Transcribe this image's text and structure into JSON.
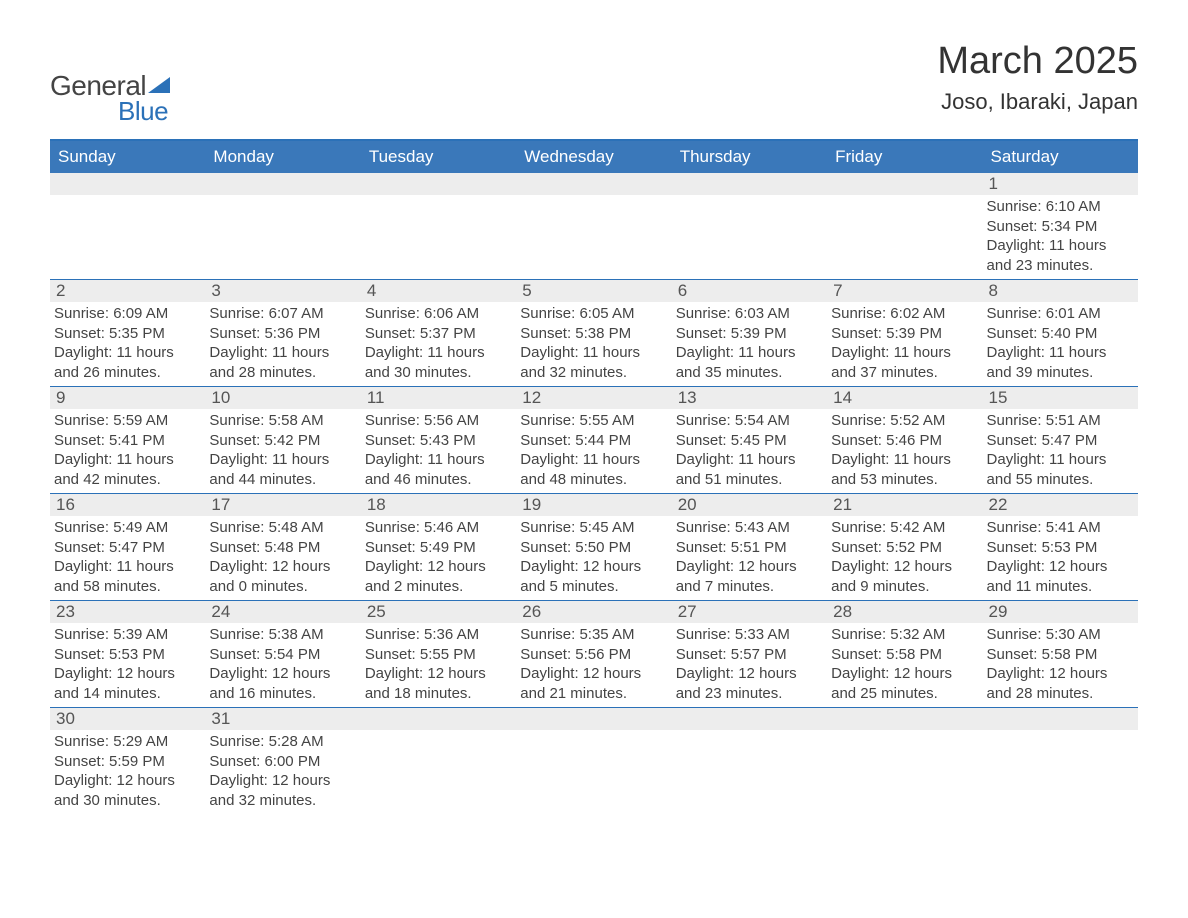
{
  "logo": {
    "text1": "General",
    "text2": "Blue"
  },
  "title": "March 2025",
  "location": "Joso, Ibaraki, Japan",
  "colors": {
    "header_bg": "#3a78ba",
    "header_text": "#ffffff",
    "row_divider": "#2b71b8",
    "daynum_bg": "#ededed",
    "text": "#444444",
    "background": "#ffffff"
  },
  "typography": {
    "title_fontsize_pt": 28,
    "location_fontsize_pt": 16,
    "weekday_fontsize_pt": 13,
    "daynum_fontsize_pt": 13,
    "body_fontsize_pt": 11
  },
  "layout": {
    "columns": 7,
    "rows": 6,
    "type": "calendar-grid"
  },
  "weekdays": [
    "Sunday",
    "Monday",
    "Tuesday",
    "Wednesday",
    "Thursday",
    "Friday",
    "Saturday"
  ],
  "weeks": [
    [
      null,
      null,
      null,
      null,
      null,
      null,
      {
        "n": "1",
        "sunrise": "Sunrise: 6:10 AM",
        "sunset": "Sunset: 5:34 PM",
        "daylight": "Daylight: 11 hours and 23 minutes."
      }
    ],
    [
      {
        "n": "2",
        "sunrise": "Sunrise: 6:09 AM",
        "sunset": "Sunset: 5:35 PM",
        "daylight": "Daylight: 11 hours and 26 minutes."
      },
      {
        "n": "3",
        "sunrise": "Sunrise: 6:07 AM",
        "sunset": "Sunset: 5:36 PM",
        "daylight": "Daylight: 11 hours and 28 minutes."
      },
      {
        "n": "4",
        "sunrise": "Sunrise: 6:06 AM",
        "sunset": "Sunset: 5:37 PM",
        "daylight": "Daylight: 11 hours and 30 minutes."
      },
      {
        "n": "5",
        "sunrise": "Sunrise: 6:05 AM",
        "sunset": "Sunset: 5:38 PM",
        "daylight": "Daylight: 11 hours and 32 minutes."
      },
      {
        "n": "6",
        "sunrise": "Sunrise: 6:03 AM",
        "sunset": "Sunset: 5:39 PM",
        "daylight": "Daylight: 11 hours and 35 minutes."
      },
      {
        "n": "7",
        "sunrise": "Sunrise: 6:02 AM",
        "sunset": "Sunset: 5:39 PM",
        "daylight": "Daylight: 11 hours and 37 minutes."
      },
      {
        "n": "8",
        "sunrise": "Sunrise: 6:01 AM",
        "sunset": "Sunset: 5:40 PM",
        "daylight": "Daylight: 11 hours and 39 minutes."
      }
    ],
    [
      {
        "n": "9",
        "sunrise": "Sunrise: 5:59 AM",
        "sunset": "Sunset: 5:41 PM",
        "daylight": "Daylight: 11 hours and 42 minutes."
      },
      {
        "n": "10",
        "sunrise": "Sunrise: 5:58 AM",
        "sunset": "Sunset: 5:42 PM",
        "daylight": "Daylight: 11 hours and 44 minutes."
      },
      {
        "n": "11",
        "sunrise": "Sunrise: 5:56 AM",
        "sunset": "Sunset: 5:43 PM",
        "daylight": "Daylight: 11 hours and 46 minutes."
      },
      {
        "n": "12",
        "sunrise": "Sunrise: 5:55 AM",
        "sunset": "Sunset: 5:44 PM",
        "daylight": "Daylight: 11 hours and 48 minutes."
      },
      {
        "n": "13",
        "sunrise": "Sunrise: 5:54 AM",
        "sunset": "Sunset: 5:45 PM",
        "daylight": "Daylight: 11 hours and 51 minutes."
      },
      {
        "n": "14",
        "sunrise": "Sunrise: 5:52 AM",
        "sunset": "Sunset: 5:46 PM",
        "daylight": "Daylight: 11 hours and 53 minutes."
      },
      {
        "n": "15",
        "sunrise": "Sunrise: 5:51 AM",
        "sunset": "Sunset: 5:47 PM",
        "daylight": "Daylight: 11 hours and 55 minutes."
      }
    ],
    [
      {
        "n": "16",
        "sunrise": "Sunrise: 5:49 AM",
        "sunset": "Sunset: 5:47 PM",
        "daylight": "Daylight: 11 hours and 58 minutes."
      },
      {
        "n": "17",
        "sunrise": "Sunrise: 5:48 AM",
        "sunset": "Sunset: 5:48 PM",
        "daylight": "Daylight: 12 hours and 0 minutes."
      },
      {
        "n": "18",
        "sunrise": "Sunrise: 5:46 AM",
        "sunset": "Sunset: 5:49 PM",
        "daylight": "Daylight: 12 hours and 2 minutes."
      },
      {
        "n": "19",
        "sunrise": "Sunrise: 5:45 AM",
        "sunset": "Sunset: 5:50 PM",
        "daylight": "Daylight: 12 hours and 5 minutes."
      },
      {
        "n": "20",
        "sunrise": "Sunrise: 5:43 AM",
        "sunset": "Sunset: 5:51 PM",
        "daylight": "Daylight: 12 hours and 7 minutes."
      },
      {
        "n": "21",
        "sunrise": "Sunrise: 5:42 AM",
        "sunset": "Sunset: 5:52 PM",
        "daylight": "Daylight: 12 hours and 9 minutes."
      },
      {
        "n": "22",
        "sunrise": "Sunrise: 5:41 AM",
        "sunset": "Sunset: 5:53 PM",
        "daylight": "Daylight: 12 hours and 11 minutes."
      }
    ],
    [
      {
        "n": "23",
        "sunrise": "Sunrise: 5:39 AM",
        "sunset": "Sunset: 5:53 PM",
        "daylight": "Daylight: 12 hours and 14 minutes."
      },
      {
        "n": "24",
        "sunrise": "Sunrise: 5:38 AM",
        "sunset": "Sunset: 5:54 PM",
        "daylight": "Daylight: 12 hours and 16 minutes."
      },
      {
        "n": "25",
        "sunrise": "Sunrise: 5:36 AM",
        "sunset": "Sunset: 5:55 PM",
        "daylight": "Daylight: 12 hours and 18 minutes."
      },
      {
        "n": "26",
        "sunrise": "Sunrise: 5:35 AM",
        "sunset": "Sunset: 5:56 PM",
        "daylight": "Daylight: 12 hours and 21 minutes."
      },
      {
        "n": "27",
        "sunrise": "Sunrise: 5:33 AM",
        "sunset": "Sunset: 5:57 PM",
        "daylight": "Daylight: 12 hours and 23 minutes."
      },
      {
        "n": "28",
        "sunrise": "Sunrise: 5:32 AM",
        "sunset": "Sunset: 5:58 PM",
        "daylight": "Daylight: 12 hours and 25 minutes."
      },
      {
        "n": "29",
        "sunrise": "Sunrise: 5:30 AM",
        "sunset": "Sunset: 5:58 PM",
        "daylight": "Daylight: 12 hours and 28 minutes."
      }
    ],
    [
      {
        "n": "30",
        "sunrise": "Sunrise: 5:29 AM",
        "sunset": "Sunset: 5:59 PM",
        "daylight": "Daylight: 12 hours and 30 minutes."
      },
      {
        "n": "31",
        "sunrise": "Sunrise: 5:28 AM",
        "sunset": "Sunset: 6:00 PM",
        "daylight": "Daylight: 12 hours and 32 minutes."
      },
      null,
      null,
      null,
      null,
      null
    ]
  ]
}
